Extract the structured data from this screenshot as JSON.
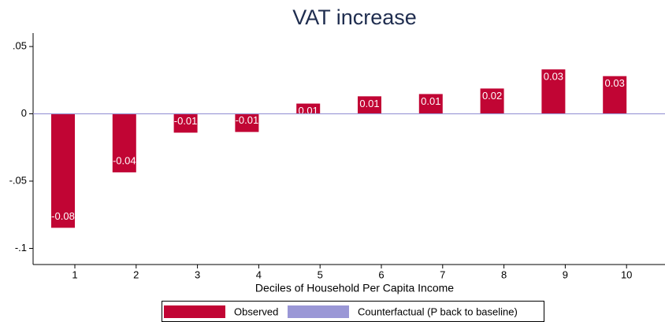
{
  "chart_data": {
    "type": "bar",
    "title": "VAT increase",
    "xlabel": "Deciles of Household Per Capita Income",
    "categories": [
      "1",
      "2",
      "3",
      "4",
      "5",
      "6",
      "7",
      "8",
      "9",
      "10"
    ],
    "series": [
      {
        "name": "Observed",
        "color": "#c10534",
        "values": [
          -0.0847,
          -0.0435,
          -0.014,
          -0.0135,
          0.0076,
          0.013,
          0.0147,
          0.0188,
          0.033,
          0.028
        ],
        "value_labels": [
          "-0.08",
          "-0.04",
          "-0.01",
          "-0.01",
          "0.01",
          "0.01",
          "0.01",
          "0.02",
          "0.03",
          "0.03"
        ]
      },
      {
        "name": "Counterfactual (P back to baseline)",
        "color": "#9a97d6",
        "values": [
          0,
          0,
          0,
          0,
          0,
          0,
          0,
          0,
          0,
          0
        ]
      }
    ],
    "ylim": [
      -0.112,
      0.06
    ],
    "yticks": [
      {
        "value": 0.05,
        "label": ".05"
      },
      0,
      {
        "value": -0.05,
        "label": "-.05"
      },
      {
        "value": -0.1,
        "label": "-.1"
      }
    ],
    "legend": "bottom"
  }
}
